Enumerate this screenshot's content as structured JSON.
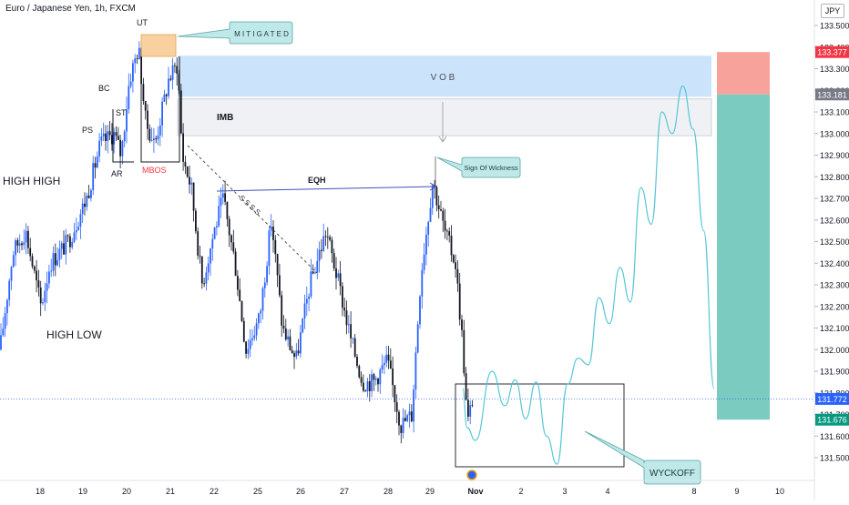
{
  "header": {
    "symbol_title": "Euro / Japanese Yen, 1h, FXCM",
    "currency_button": "JPY"
  },
  "chart_data": {
    "type": "line",
    "title": "Euro / Japanese Yen, 1h, FXCM",
    "y_axis": {
      "ticks": [
        "133.500",
        "133.400",
        "133.300",
        "133.200",
        "133.100",
        "133.000",
        "132.900",
        "132.800",
        "132.700",
        "132.600",
        "132.500",
        "132.400",
        "132.300",
        "132.200",
        "132.100",
        "132.000",
        "131.900",
        "131.800",
        "131.700",
        "131.600",
        "131.500"
      ],
      "range": [
        131.5,
        133.5
      ]
    },
    "x_axis": {
      "ticks": [
        "18",
        "19",
        "20",
        "21",
        "22",
        "25",
        "26",
        "27",
        "28",
        "29",
        "Nov",
        "2",
        "3",
        "4",
        "8",
        "9",
        "10"
      ]
    },
    "price_tags": [
      {
        "label": "133.377",
        "value": 133.377,
        "color": "#f23645"
      },
      {
        "label": "133.181",
        "value": 133.181,
        "color": "#787b86"
      },
      {
        "label": "131.772",
        "value": 131.772,
        "color": "#2962ff"
      },
      {
        "label": "131.676",
        "value": 131.676,
        "color": "#089981"
      }
    ],
    "position_tool": {
      "stop": 133.377,
      "entry": 133.181,
      "target": 131.676
    },
    "zones": [
      {
        "label": "V O B",
        "top": 133.36,
        "bottom": 133.17
      },
      {
        "label": "IMB",
        "top": 133.16,
        "bottom": 132.99
      }
    ],
    "annotations": {
      "high_high": "HIGH HIGH",
      "high_low": "HIGH LOW",
      "ut": "UT",
      "bc": "BC",
      "st": "ST",
      "ps": "PS",
      "ar": "AR",
      "mbos": "MBOS",
      "eqh": "EQH",
      "ssss": "S S S S",
      "mitigated": "M I T I G A T E D",
      "sign_of_wickness": "Sign Of Wickness",
      "wyckoff": "WYCKOFF"
    },
    "projection": [
      [
        0,
        131.82
      ],
      [
        0.4,
        131.64
      ],
      [
        1.2,
        131.58
      ],
      [
        2.8,
        131.9
      ],
      [
        4,
        131.74
      ],
      [
        5,
        131.86
      ],
      [
        6,
        131.68
      ],
      [
        7,
        131.85
      ],
      [
        8,
        131.6
      ],
      [
        9,
        131.47
      ],
      [
        10,
        131.84
      ],
      [
        11,
        131.96
      ],
      [
        12,
        131.93
      ],
      [
        13,
        132.24
      ],
      [
        14,
        132.12
      ],
      [
        15,
        132.38
      ],
      [
        16,
        132.22
      ],
      [
        17,
        132.75
      ],
      [
        18,
        132.58
      ],
      [
        19,
        133.1
      ],
      [
        20,
        133.0
      ],
      [
        21,
        133.22
      ],
      [
        22,
        133.02
      ],
      [
        23,
        132.55
      ],
      [
        24,
        131.82
      ]
    ]
  }
}
